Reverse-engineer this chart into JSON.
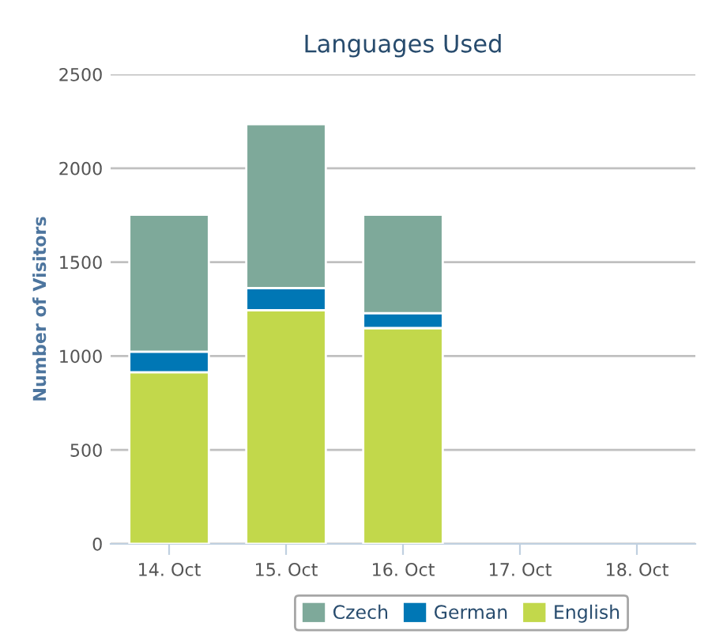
{
  "chart_data": {
    "type": "bar",
    "title": "Languages Used",
    "ylabel": "Number of Visitors",
    "categories": [
      "14. Oct",
      "15. Oct",
      "16. Oct",
      "17. Oct",
      "18. Oct"
    ],
    "stacked": true,
    "series": [
      {
        "name": "English",
        "color": "#c2d84b",
        "values": [
          914,
          1244,
          1149,
          null,
          null
        ]
      },
      {
        "name": "German",
        "color": "#0077b5",
        "values": [
          109,
          118,
          79,
          null,
          null
        ]
      },
      {
        "name": "Czech",
        "color": "#7ea99a",
        "values": [
          729,
          872,
          524,
          null,
          null
        ]
      }
    ],
    "ylim": [
      0,
      2500
    ],
    "yticks": [
      0,
      500,
      1000,
      1500,
      2000,
      2500
    ],
    "grid": "y",
    "legend": "bottom"
  }
}
